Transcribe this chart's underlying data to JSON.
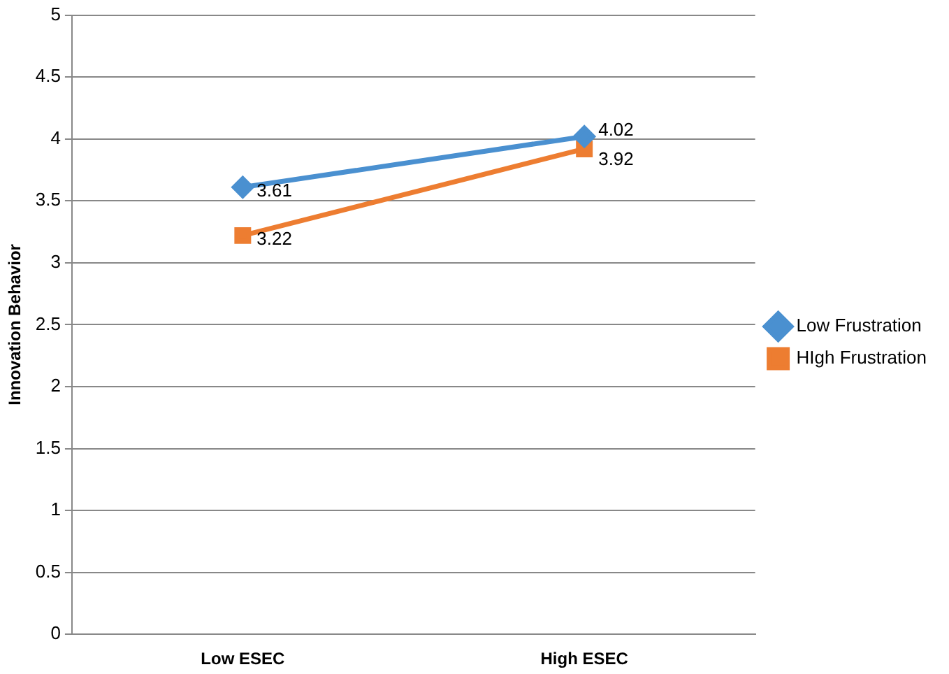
{
  "chart_data": {
    "type": "line",
    "ylabel": "Innovation Behavior",
    "categories": [
      "Low ESEC",
      "High ESEC"
    ],
    "series": [
      {
        "name": "Low Frustration",
        "color": "#4a90d0",
        "values": [
          3.61,
          4.02
        ],
        "marker": "diamond"
      },
      {
        "name": "HIgh Frustration",
        "color": "#ed7d31",
        "values": [
          3.22,
          3.92
        ],
        "marker": "square"
      }
    ],
    "ylim": [
      0,
      5
    ],
    "yticks": [
      0,
      0.5,
      1,
      1.5,
      2,
      2.5,
      3,
      3.5,
      4,
      4.5,
      5
    ],
    "grid": "y",
    "legend": "right",
    "data_labels": true,
    "line_style": "solid"
  }
}
